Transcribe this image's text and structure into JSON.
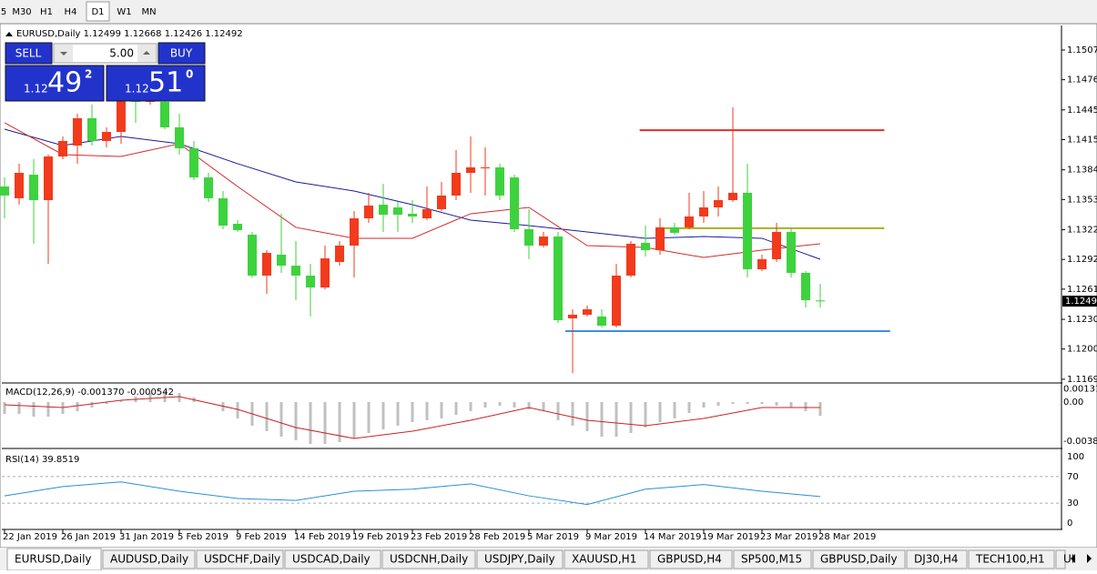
{
  "toolbar": {
    "timeframes": [
      "5",
      "M30",
      "H1",
      "H4",
      "D1",
      "W1",
      "MN"
    ],
    "active": 4
  },
  "symbol": "EURUSD,Daily",
  "trade_panel": {
    "sell": "SELL",
    "buy": "BUY",
    "lot": "5.00",
    "bid": {
      "big": "1.12",
      "pips": "49",
      "frac": "2"
    },
    "ask": {
      "big": "1.12",
      "pips": "51",
      "frac": "0"
    }
  },
  "tabs": [
    "EURUSD,Daily",
    "AUDUSD,Daily",
    "USDCHF,Daily",
    "USDCAD,Daily",
    "USDCNH,Daily",
    "USDJPY,Daily",
    "XAUUSD,H1",
    "GBPUSD,H4",
    "SP500,M15",
    "GBPUSD,Daily",
    "DJ30,H4",
    "TECH100,H1",
    "UI"
  ],
  "active_tab": 0,
  "chart_data": [
    {
      "type": "candlestick",
      "categories": [
        "22 Jan 2019",
        null,
        null,
        null,
        "26 Jan 2019",
        null,
        null,
        null,
        "31 Jan 2019",
        null,
        null,
        null,
        "5 Feb 2019",
        null,
        null,
        null,
        "9 Feb 2019",
        null,
        null,
        null,
        "14 Feb 2019",
        null,
        null,
        null,
        "19 Feb 2019",
        null,
        null,
        null,
        "23 Feb 2019",
        null,
        null,
        null,
        "28 Feb 2019",
        null,
        null,
        null,
        "5 Mar 2019",
        null,
        null,
        null,
        "9 Mar 2019",
        null,
        null,
        null,
        "14 Mar 2019",
        null,
        null,
        null,
        "19 Mar 2019",
        null,
        null,
        null,
        "23 Mar 2019",
        null,
        null,
        null,
        "28 Mar 2019"
      ],
      "open": [
        1.13669,
        1.13548,
        1.1379,
        1.13529,
        1.13977,
        1.14089,
        1.1437,
        1.14136,
        1.14229,
        1.14603,
        1.14538,
        1.14538,
        1.14276,
        1.14061,
        1.13762,
        1.13548,
        1.13286,
        1.13174,
        1.12754,
        1.12969,
        1.12856,
        1.12754,
        1.12632,
        1.12894,
        1.13062,
        1.13342,
        1.13482,
        1.13454,
        1.13389,
        1.13342,
        1.13436,
        1.13576,
        1.13809,
        1.13856,
        1.13865,
        1.13762,
        1.1323,
        1.13062,
        1.13155,
        1.12315,
        1.12352,
        1.12334,
        1.1224,
        1.12754,
        1.1309,
        1.13015,
        1.13249,
        1.13249,
        1.13361,
        1.13454,
        1.13529,
        1.13604,
        1.12819,
        1.12922,
        1.13202,
        1.12782,
        1.12499
      ],
      "high": [
        1.13762,
        1.13903,
        1.13949,
        1.13996,
        1.14183,
        1.14416,
        1.1451,
        1.14276,
        1.1465,
        1.14696,
        1.14762,
        1.1465,
        1.14416,
        1.14136,
        1.13809,
        1.13622,
        1.13323,
        1.13202,
        1.13015,
        1.13389,
        1.13109,
        1.12875,
        1.13062,
        1.13109,
        1.13417,
        1.13604,
        1.13697,
        1.1351,
        1.13529,
        1.13669,
        1.13716,
        1.14043,
        1.14183,
        1.14071,
        1.13903,
        1.1379,
        1.13436,
        1.13202,
        1.13202,
        1.12408,
        1.12445,
        1.12408,
        1.12875,
        1.13109,
        1.13267,
        1.13342,
        1.13295,
        1.13604,
        1.13622,
        1.13669,
        1.14482,
        1.13903,
        1.12969,
        1.13295,
        1.13249,
        1.128,
        1.12668
      ],
      "low": [
        1.13342,
        1.13482,
        1.13081,
        1.12875,
        1.13949,
        1.13903,
        1.14089,
        1.14071,
        1.14108,
        1.14323,
        1.1451,
        1.14257,
        1.13996,
        1.13734,
        1.1351,
        1.1323,
        1.13202,
        1.12735,
        1.12567,
        1.12782,
        1.12502,
        1.12334,
        1.12614,
        1.12856,
        1.12735,
        1.13295,
        1.13202,
        1.13202,
        1.13295,
        1.13323,
        1.13417,
        1.13529,
        1.13604,
        1.13576,
        1.13529,
        1.13202,
        1.12922,
        1.13043,
        1.12268,
        1.11754,
        1.12334,
        1.12221,
        1.12221,
        1.12735,
        1.1295,
        1.12969,
        1.13174,
        1.1323,
        1.13295,
        1.13361,
        1.1351,
        1.12735,
        1.128,
        1.12894,
        1.12735,
        1.12427,
        1.12426
      ],
      "close": [
        1.13576,
        1.13809,
        1.13529,
        1.13977,
        1.14136,
        1.1437,
        1.14136,
        1.14229,
        1.14556,
        1.14538,
        1.14696,
        1.14276,
        1.14061,
        1.13762,
        1.13548,
        1.13267,
        1.13221,
        1.12754,
        1.12987,
        1.12856,
        1.12754,
        1.12632,
        1.12931,
        1.13062,
        1.13342,
        1.13473,
        1.13379,
        1.13379,
        1.13361,
        1.13436,
        1.13576,
        1.13809,
        1.13865,
        1.13865,
        1.13576,
        1.1323,
        1.13062,
        1.13155,
        1.12296,
        1.12352,
        1.12408,
        1.1224,
        1.12754,
        1.13081,
        1.13015,
        1.13249,
        1.13193,
        1.13361,
        1.13454,
        1.13529,
        1.13604,
        1.12819,
        1.12922,
        1.13202,
        1.12782,
        1.12502,
        1.12492
      ],
      "up_color": "#f23a1c",
      "down_color": "#3ed23e",
      "ylim": [
        1.11661,
        1.15322
      ],
      "yticks": [
        {
          "value": 1.1507,
          "label": "1.15070"
        },
        1.14765,
        1.14455,
        {
          "value": 1.1415,
          "label": "1.14150"
        },
        {
          "value": 1.1384,
          "label": "1.13840"
        },
        1.13535,
        1.13225,
        {
          "value": 1.1292,
          "label": "1.12920"
        },
        1.12615,
        1.12305,
        {
          "value": 1.12,
          "label": "1.12000"
        },
        {
          "value": 1.1169,
          "label": "1.11690"
        }
      ],
      "overlays": [
        {
          "color": "#1a1a9c",
          "x": [
            0,
            4,
            8,
            12,
            16,
            20,
            24,
            28,
            32,
            36,
            40,
            44,
            48,
            52,
            56
          ],
          "values": [
            1.14257,
            1.14089,
            1.14183,
            1.14108,
            1.13903,
            1.13716,
            1.13622,
            1.13482,
            1.13323,
            1.13267,
            1.13202,
            1.13137,
            1.13155,
            1.13137,
            1.12922
          ]
        },
        {
          "color": "#d42a2a",
          "x": [
            0,
            4,
            8,
            12,
            16,
            20,
            24,
            28,
            32,
            36,
            40,
            44,
            48,
            52,
            56
          ],
          "values": [
            1.14323,
            1.13996,
            1.13977,
            1.14108,
            1.13669,
            1.13249,
            1.13137,
            1.13137,
            1.13389,
            1.13454,
            1.13062,
            1.13043,
            1.1294,
            1.13015,
            1.13081
          ]
        }
      ],
      "hlines": [
        {
          "value": 1.14247,
          "color": "#e0302a"
        },
        {
          "value": 1.1324,
          "color": "#a8b020"
        },
        {
          "value": 1.12184,
          "color": "#3a8ee6"
        }
      ]
    },
    {
      "type": "macd",
      "label": "MACD(12,26,9) -0.001370 -0.000542",
      "ylim": [
        -0.0045,
        0.0018
      ],
      "yticks": [
        0.001313,
        {
          "value": 0,
          "label": "0.00"
        },
        -0.00386
      ],
      "histogram": {
        "color": "#c0c0c0",
        "values": [
          -0.00117,
          -0.00117,
          -0.00144,
          -0.00144,
          -0.00117,
          -0.0009,
          -0.00054,
          -0.00018,
          0.00018,
          0.00054,
          0.0009,
          0.00108,
          0.0009,
          0.00045,
          0,
          -0.0009,
          -0.00162,
          -0.00234,
          -0.00288,
          -0.00342,
          -0.00378,
          -0.00414,
          -0.00414,
          -0.00396,
          -0.0036,
          -0.00306,
          -0.0027,
          -0.00234,
          -0.00198,
          -0.0018,
          -0.00162,
          -0.00126,
          -0.0009,
          -0.00054,
          -0.00036,
          -0.00054,
          -0.00072,
          -0.0009,
          -0.0018,
          -0.00234,
          -0.00288,
          -0.00342,
          -0.00342,
          -0.00306,
          -0.00252,
          -0.00198,
          -0.00162,
          -0.00108,
          -0.00054,
          -0.00036,
          -0.00018,
          -0.00018,
          -0.00018,
          -0.00036,
          -0.00054,
          -0.0009,
          -0.00137
        ]
      },
      "signal": {
        "color": "#cc2222",
        "x": [
          0,
          4,
          8,
          12,
          16,
          20,
          24,
          28,
          32,
          36,
          40,
          44,
          48,
          52,
          56
        ],
        "values": [
          -0.00027,
          -0.00054,
          0.00018,
          0.00054,
          -0.00072,
          -0.00252,
          -0.0036,
          -0.00288,
          -0.0018,
          -0.00054,
          -0.0018,
          -0.00234,
          -0.00162,
          -0.00054,
          -0.000542
        ]
      }
    },
    {
      "type": "line",
      "label": "RSI(14) 39.8519",
      "ylim": [
        -9.6,
        109.6
      ],
      "yticks": [
        100,
        70,
        30,
        0
      ],
      "levels": [
        70,
        30
      ],
      "series": [
        {
          "color": "#2a8fd6",
          "x": [
            0,
            4,
            8,
            12,
            16,
            20,
            24,
            28,
            32,
            36,
            40,
            44,
            48,
            52,
            56
          ],
          "values": [
            41,
            55,
            62,
            48,
            37,
            34,
            48,
            51,
            59,
            41,
            28,
            51,
            58,
            48,
            39.8519
          ]
        }
      ]
    }
  ]
}
